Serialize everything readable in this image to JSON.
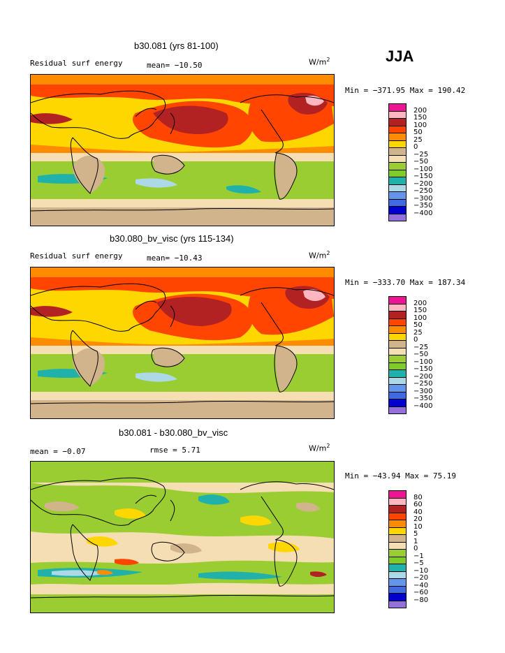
{
  "season": "JJA",
  "panels": [
    {
      "title": "b30.081 (yrs 81-100)",
      "left_label": "Residual surf energy",
      "stat": "mean= −10.50",
      "units": "W/m",
      "units_sup": "2",
      "minmax": "Min = −371.95  Max = 190.42",
      "levels": [
        "200",
        "150",
        "100",
        "50",
        "25",
        "0",
        "−25",
        "−50",
        "−100",
        "−150",
        "−200",
        "−250",
        "−300",
        "−350",
        "−400"
      ],
      "colors": [
        "#ee1493",
        "#ffb6c1",
        "#b22222",
        "#ff4500",
        "#ff8c00",
        "#ffd700",
        "#d2b48c",
        "#f5deb3",
        "#9acd32",
        "#7fcc28",
        "#20b2aa",
        "#add8e6",
        "#6495ed",
        "#4169e1",
        "#0000cd",
        "#9370db"
      ]
    },
    {
      "title": "b30.080_bv_visc (yrs 115-134)",
      "left_label": "Residual surf energy",
      "stat": "mean= −10.43",
      "units": "W/m",
      "units_sup": "2",
      "minmax": "Min = −333.70  Max = 187.34",
      "levels": [
        "200",
        "150",
        "100",
        "50",
        "25",
        "0",
        "−25",
        "−50",
        "−100",
        "−150",
        "−200",
        "−250",
        "−300",
        "−350",
        "−400"
      ],
      "colors": [
        "#ee1493",
        "#ffb6c1",
        "#b22222",
        "#ff4500",
        "#ff8c00",
        "#ffd700",
        "#d2b48c",
        "#f5deb3",
        "#9acd32",
        "#7fcc28",
        "#20b2aa",
        "#add8e6",
        "#6495ed",
        "#4169e1",
        "#0000cd",
        "#9370db"
      ]
    },
    {
      "title": "b30.081 - b30.080_bv_visc",
      "left_label": "mean =   −0.07",
      "stat": "rmse =   5.71",
      "units": "W/m",
      "units_sup": "2",
      "minmax": "Min = −43.94  Max =  75.19",
      "levels": [
        "80",
        "60",
        "40",
        "20",
        "10",
        "5",
        "1",
        "0",
        "−1",
        "−5",
        "−10",
        "−20",
        "−40",
        "−60",
        "−80"
      ],
      "colors": [
        "#ee1493",
        "#ffb6c1",
        "#b22222",
        "#ff4500",
        "#ff8c00",
        "#ffd700",
        "#d2b48c",
        "#f5deb3",
        "#9acd32",
        "#7fcc28",
        "#20b2aa",
        "#add8e6",
        "#6495ed",
        "#4169e1",
        "#0000cd",
        "#9370db"
      ]
    }
  ]
}
